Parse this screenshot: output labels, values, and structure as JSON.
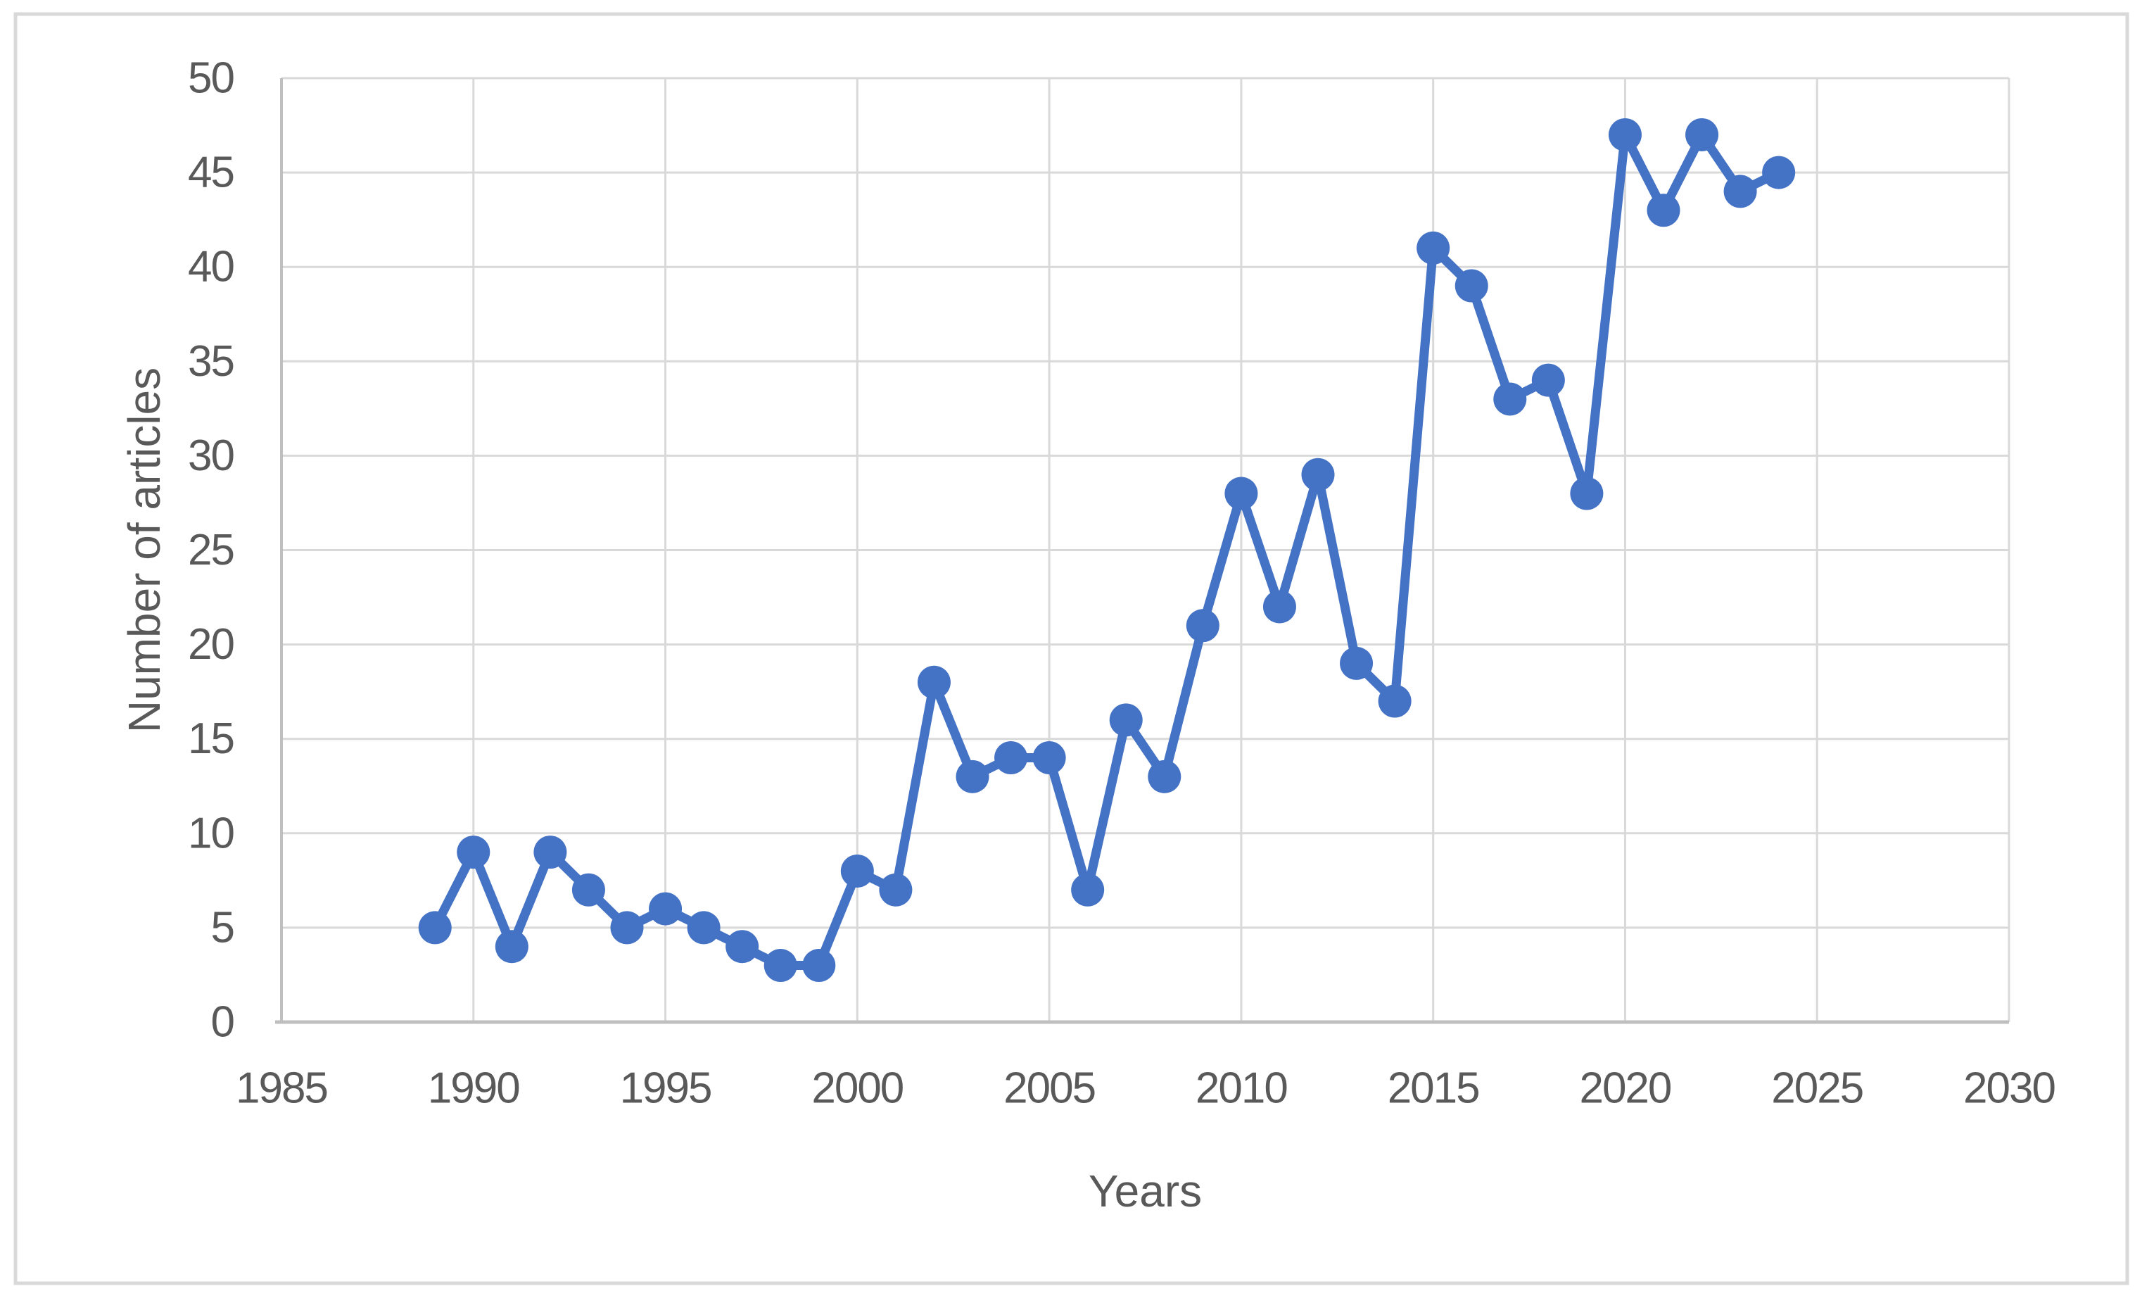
{
  "figure": {
    "background_color": "#ffffff",
    "border_color": "#d9d9d9"
  },
  "chart_data": {
    "type": "line",
    "title": "",
    "xlabel": "Years",
    "ylabel": "Number of articles",
    "x": [
      1989,
      1990,
      1991,
      1992,
      1993,
      1994,
      1995,
      1996,
      1997,
      1998,
      1999,
      2000,
      2001,
      2002,
      2003,
      2004,
      2005,
      2006,
      2007,
      2008,
      2009,
      2010,
      2011,
      2012,
      2013,
      2014,
      2015,
      2016,
      2017,
      2018,
      2019,
      2020,
      2021,
      2022,
      2023,
      2024
    ],
    "values": [
      5,
      9,
      4,
      9,
      7,
      5,
      6,
      5,
      4,
      3,
      3,
      8,
      7,
      18,
      13,
      14,
      14,
      7,
      16,
      13,
      21,
      28,
      22,
      29,
      19,
      17,
      41,
      39,
      33,
      34,
      28,
      47,
      43,
      47,
      44,
      45
    ],
    "series_name": "Number of articles",
    "xlim": [
      1985,
      2030
    ],
    "ylim": [
      0,
      50
    ],
    "x_ticks": [
      1985,
      1990,
      1995,
      2000,
      2005,
      2010,
      2015,
      2020,
      2025,
      2030
    ],
    "y_ticks": [
      0,
      5,
      10,
      15,
      20,
      25,
      30,
      35,
      40,
      45,
      50
    ],
    "grid": true,
    "legend": false,
    "marker": "circle",
    "colors": {
      "series": "#4472C4",
      "gridline": "#d9d9d9",
      "axis_line": "#bfbfbf",
      "tick_label": "#595959",
      "axis_title": "#595959"
    }
  }
}
